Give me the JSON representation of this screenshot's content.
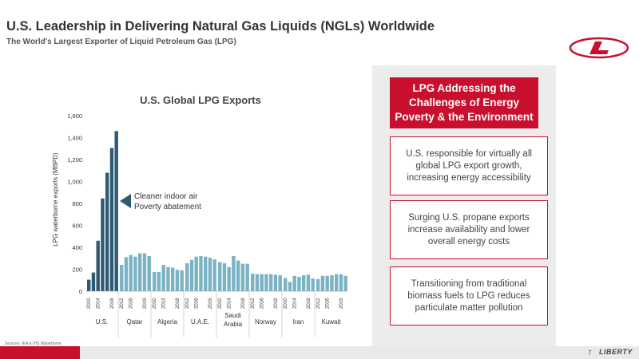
{
  "slide": {
    "title": "U.S. Leadership in Delivering Natural Gas Liquids (NGLs) Worldwide",
    "subtitle": "The World's Largest Exporter of Liquid Petroleum Gas (LPG)",
    "source": "Sources: IEA & IHS Waterborne",
    "page_number": "7",
    "brand": "LIBERTY",
    "logo_icon": "liberty-l-logo-icon"
  },
  "panel": {
    "heading": "LPG Addressing the Challenges of Energy Poverty & the Environment",
    "items": [
      "U.S. responsible for virtually all global LPG export growth, increasing energy accessibility",
      "Surging U.S. propane exports increase availability and lower overall energy costs",
      "Transitioning from traditional biomass fuels to LPG reduces particulate matter pollution"
    ]
  },
  "colors": {
    "us_bar": "#2e5a73",
    "other_bar": "#7ab3c4",
    "accent_red": "#c8102e"
  },
  "chart_data": {
    "type": "bar",
    "title": "U.S. Global LPG Exports",
    "ylabel": "LPG waterborne exports (MBPD)",
    "ylim": [
      0,
      1600
    ],
    "yticks": [
      "0",
      "200",
      "400",
      "600",
      "800",
      "1,000",
      "1,200",
      "1,400",
      "1,600"
    ],
    "annotation": [
      "Cleaner indoor air",
      "Poverty abatement"
    ],
    "groups": [
      {
        "name": "U.S.",
        "years": [
          "2010",
          "2014",
          "2018"
        ],
        "values": [
          105,
          170,
          460,
          845,
          1080,
          1305,
          1460
        ]
      },
      {
        "name": "Qatar",
        "years": [
          "2012",
          "2016",
          "2019"
        ],
        "values": [
          240,
          310,
          330,
          315,
          345,
          345,
          320
        ]
      },
      {
        "name": "Algeria",
        "years": [
          "2010",
          "2014",
          "2018"
        ],
        "values": [
          175,
          175,
          240,
          220,
          215,
          195,
          190
        ]
      },
      {
        "name": "U.A.E.",
        "years": [
          "2012",
          "2016",
          "2019"
        ],
        "values": [
          255,
          285,
          315,
          320,
          315,
          305,
          290
        ]
      },
      {
        "name": "Saudi Arabia",
        "years": [
          "2010",
          "2014",
          "2018"
        ],
        "values": [
          265,
          255,
          220,
          320,
          280,
          250,
          250
        ]
      },
      {
        "name": "Norway",
        "years": [
          "2012",
          "2016",
          "2019"
        ],
        "values": [
          160,
          155,
          155,
          155,
          155,
          150,
          145
        ]
      },
      {
        "name": "Iran",
        "years": [
          "2010",
          "2014",
          "2018"
        ],
        "values": [
          120,
          85,
          140,
          130,
          145,
          150,
          115
        ]
      },
      {
        "name": "Kuwait",
        "years": [
          "2012",
          "2016",
          "2019"
        ],
        "values": [
          110,
          140,
          140,
          145,
          155,
          155,
          140
        ]
      }
    ]
  }
}
